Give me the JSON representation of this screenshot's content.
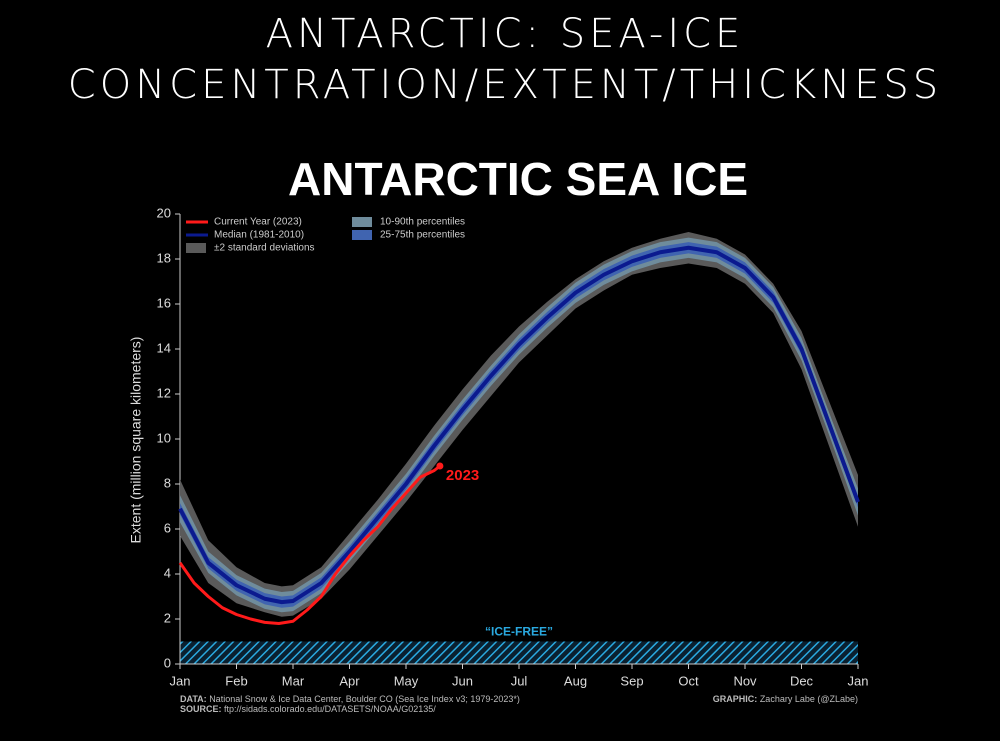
{
  "header": {
    "title_line1": "ANTARCTIC: SEA-ICE",
    "title_line2": "CONCENTRATION/EXTENT/THICKNESS"
  },
  "chart_data": {
    "type": "line",
    "title": "ANTARCTIC SEA ICE",
    "y_label": "Extent (million square kilometers)",
    "xlim": [
      0,
      12
    ],
    "xticks": [
      {
        "value": 0,
        "label": "Jan"
      },
      {
        "value": 1,
        "label": "Feb"
      },
      {
        "value": 2,
        "label": "Mar"
      },
      {
        "value": 3,
        "label": "Apr"
      },
      {
        "value": 4,
        "label": "May"
      },
      {
        "value": 5,
        "label": "Jun"
      },
      {
        "value": 6,
        "label": "Jul"
      },
      {
        "value": 7,
        "label": "Aug"
      },
      {
        "value": 8,
        "label": "Sep"
      },
      {
        "value": 9,
        "label": "Oct"
      },
      {
        "value": 10,
        "label": "Nov"
      },
      {
        "value": 11,
        "label": "Dec"
      },
      {
        "value": 12,
        "label": "Jan"
      }
    ],
    "ylim": [
      0,
      20
    ],
    "yticks": [
      0,
      2,
      4,
      6,
      8,
      10,
      12,
      14,
      16,
      18,
      20
    ],
    "x": [
      0,
      0.5,
      1,
      1.5,
      1.8,
      2,
      2.5,
      3,
      3.5,
      4,
      4.5,
      5,
      5.5,
      6,
      6.5,
      7,
      7.5,
      8,
      8.5,
      9,
      9.5,
      10,
      10.5,
      11,
      11.5,
      12
    ],
    "bands": [
      {
        "name": "±2 standard deviations",
        "color": "#5a5a5a",
        "upper": [
          8.2,
          5.5,
          4.3,
          3.6,
          3.45,
          3.5,
          4.3,
          5.8,
          7.3,
          8.9,
          10.6,
          12.2,
          13.7,
          15.0,
          16.1,
          17.1,
          17.9,
          18.5,
          18.9,
          19.2,
          18.9,
          18.2,
          16.9,
          14.8,
          11.6,
          8.4
        ],
        "lower": [
          5.7,
          3.6,
          2.7,
          2.3,
          2.1,
          2.15,
          2.9,
          4.2,
          5.7,
          7.2,
          8.8,
          10.4,
          11.9,
          13.4,
          14.6,
          15.8,
          16.6,
          17.3,
          17.6,
          17.8,
          17.6,
          16.9,
          15.6,
          13.1,
          9.6,
          6.1
        ]
      },
      {
        "name": "10-90th percentiles",
        "color": "#6f8c9c",
        "upper": [
          7.5,
          5.0,
          3.95,
          3.35,
          3.2,
          3.25,
          4.05,
          5.45,
          6.95,
          8.45,
          10.15,
          11.75,
          13.25,
          14.65,
          15.85,
          16.95,
          17.75,
          18.35,
          18.75,
          18.95,
          18.75,
          18.05,
          16.75,
          14.5,
          11.1,
          7.8
        ],
        "lower": [
          6.3,
          4.05,
          3.05,
          2.45,
          2.3,
          2.35,
          3.15,
          4.55,
          6.05,
          7.55,
          9.25,
          10.85,
          12.35,
          13.75,
          14.95,
          16.05,
          16.85,
          17.45,
          17.85,
          18.05,
          17.85,
          17.15,
          15.85,
          13.5,
          10.1,
          6.6
        ]
      },
      {
        "name": "25-75th percentiles",
        "color": "#4064b0",
        "upper": [
          7.15,
          4.75,
          3.75,
          3.15,
          3.0,
          3.05,
          3.85,
          5.25,
          6.75,
          8.25,
          9.95,
          11.55,
          13.05,
          14.45,
          15.65,
          16.75,
          17.55,
          18.15,
          18.55,
          18.75,
          18.55,
          17.85,
          16.55,
          14.25,
          10.85,
          7.45
        ],
        "lower": [
          6.65,
          4.25,
          3.25,
          2.65,
          2.5,
          2.55,
          3.35,
          4.75,
          6.25,
          7.75,
          9.45,
          11.05,
          12.55,
          13.95,
          15.15,
          16.25,
          17.05,
          17.65,
          18.05,
          18.25,
          18.05,
          17.35,
          16.05,
          13.75,
          10.35,
          6.95
        ]
      }
    ],
    "series": [
      {
        "name": "Median (1981-2010)",
        "color": "#0b1a8f",
        "values": [
          6.9,
          4.5,
          3.5,
          2.9,
          2.75,
          2.8,
          3.6,
          5.0,
          6.5,
          8.0,
          9.7,
          11.3,
          12.8,
          14.2,
          15.4,
          16.5,
          17.3,
          17.9,
          18.3,
          18.5,
          18.3,
          17.6,
          16.3,
          14.0,
          10.6,
          7.2
        ]
      },
      {
        "name": "Current Year (2023)",
        "color": "#ff1a1a",
        "end_label": "2023",
        "x": [
          0,
          0.25,
          0.5,
          0.75,
          1,
          1.25,
          1.5,
          1.75,
          2,
          2.25,
          2.5,
          2.75,
          3,
          3.25,
          3.5,
          3.75,
          4,
          4.25,
          4.5,
          4.6
        ],
        "values": [
          4.5,
          3.6,
          3.0,
          2.5,
          2.2,
          2.0,
          1.85,
          1.8,
          1.9,
          2.4,
          3.0,
          4.0,
          4.8,
          5.5,
          6.1,
          6.9,
          7.6,
          8.3,
          8.6,
          8.8
        ]
      }
    ],
    "ice_free": {
      "label": "“ICE-FREE”",
      "range": [
        0,
        1
      ],
      "color": "#2aa9e0"
    },
    "footer": {
      "data_key": "DATA:",
      "data_text": "National Snow & Ice Data Center, Boulder CO (Sea Ice Index v3; 1979-2023*)",
      "source_key": "SOURCE:",
      "source_text": "ftp://sidads.colorado.edu/DATASETS/NOAA/G02135/",
      "graphic_key": "GRAPHIC:",
      "graphic_text": "Zachary Labe (@ZLabe)"
    }
  }
}
